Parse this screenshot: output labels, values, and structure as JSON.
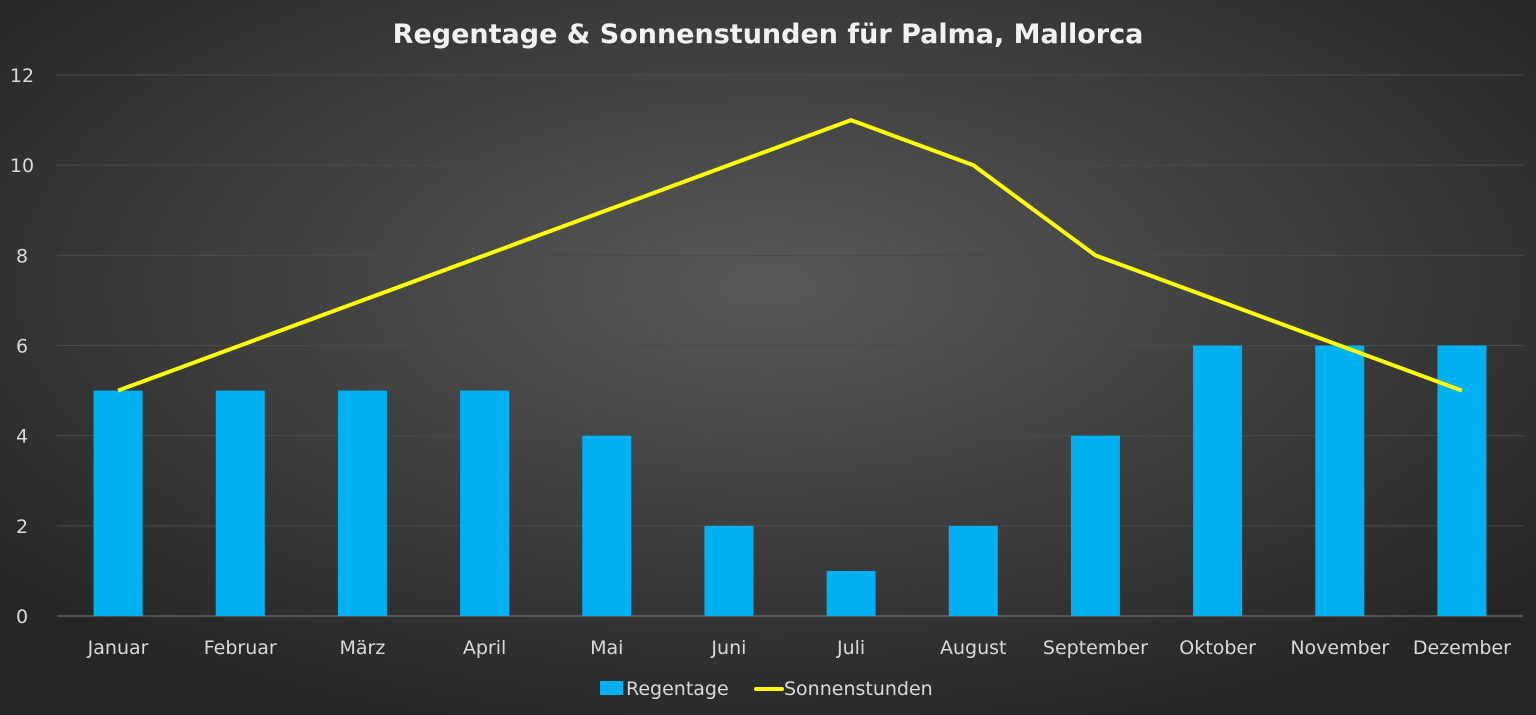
{
  "chart_data": {
    "type": "bar+line",
    "title": "Regentage & Sonnenstunden für Palma, Mallorca",
    "categories": [
      "Januar",
      "Februar",
      "März",
      "April",
      "Mai",
      "Juni",
      "Juli",
      "August",
      "September",
      "Oktober",
      "November",
      "Dezember"
    ],
    "series": [
      {
        "name": "Regentage",
        "type": "bar",
        "color": "#00b0f0",
        "values": [
          5,
          5,
          5,
          5,
          4,
          2,
          1,
          2,
          4,
          6,
          6,
          6
        ]
      },
      {
        "name": "Sonnenstunden",
        "type": "line",
        "color": "#ffff00",
        "values": [
          5,
          6,
          7,
          8,
          9,
          10,
          11,
          10,
          8,
          7,
          6,
          5
        ]
      }
    ],
    "ylim": [
      0,
      12
    ],
    "yticks": [
      0,
      2,
      4,
      6,
      8,
      10,
      12
    ],
    "grid": true,
    "legend": "bottom",
    "background": "#2b2b2b"
  }
}
